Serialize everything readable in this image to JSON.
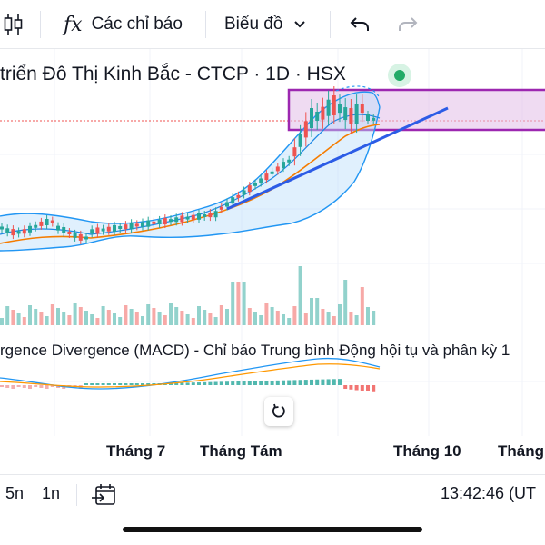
{
  "toolbar": {
    "indicators_icon": "candlestick-icon",
    "indicators_fx": "fx",
    "indicators_label": "Các chỉ báo",
    "chart_type_label": "Biểu đồ",
    "undo_icon": "undo-icon",
    "redo_icon": "redo-icon"
  },
  "legend": {
    "title": "triển Đô Thị Kinh Bắc - CTCP · 1D · HSX",
    "status_color": "#22ab67"
  },
  "macd": {
    "title": "rgence Divergence (MACD) - Chỉ báo Trung bình Động hội tụ và phân kỳ 1"
  },
  "x_axis": {
    "labels": [
      "Tháng 7",
      "Tháng Tám",
      "Tháng 10",
      "Tháng"
    ]
  },
  "bottom_bar": {
    "range_5n": "5n",
    "range_1n": "1n",
    "clock": "13:42:46 (UT"
  },
  "colors": {
    "up": "#26a69a",
    "down": "#ef5350",
    "band": "#2962ff",
    "ma": "#f57c00",
    "trendline": "#2c5ce6",
    "zone_fill": "#e1bee7",
    "zone_border": "#9c27b0"
  }
}
